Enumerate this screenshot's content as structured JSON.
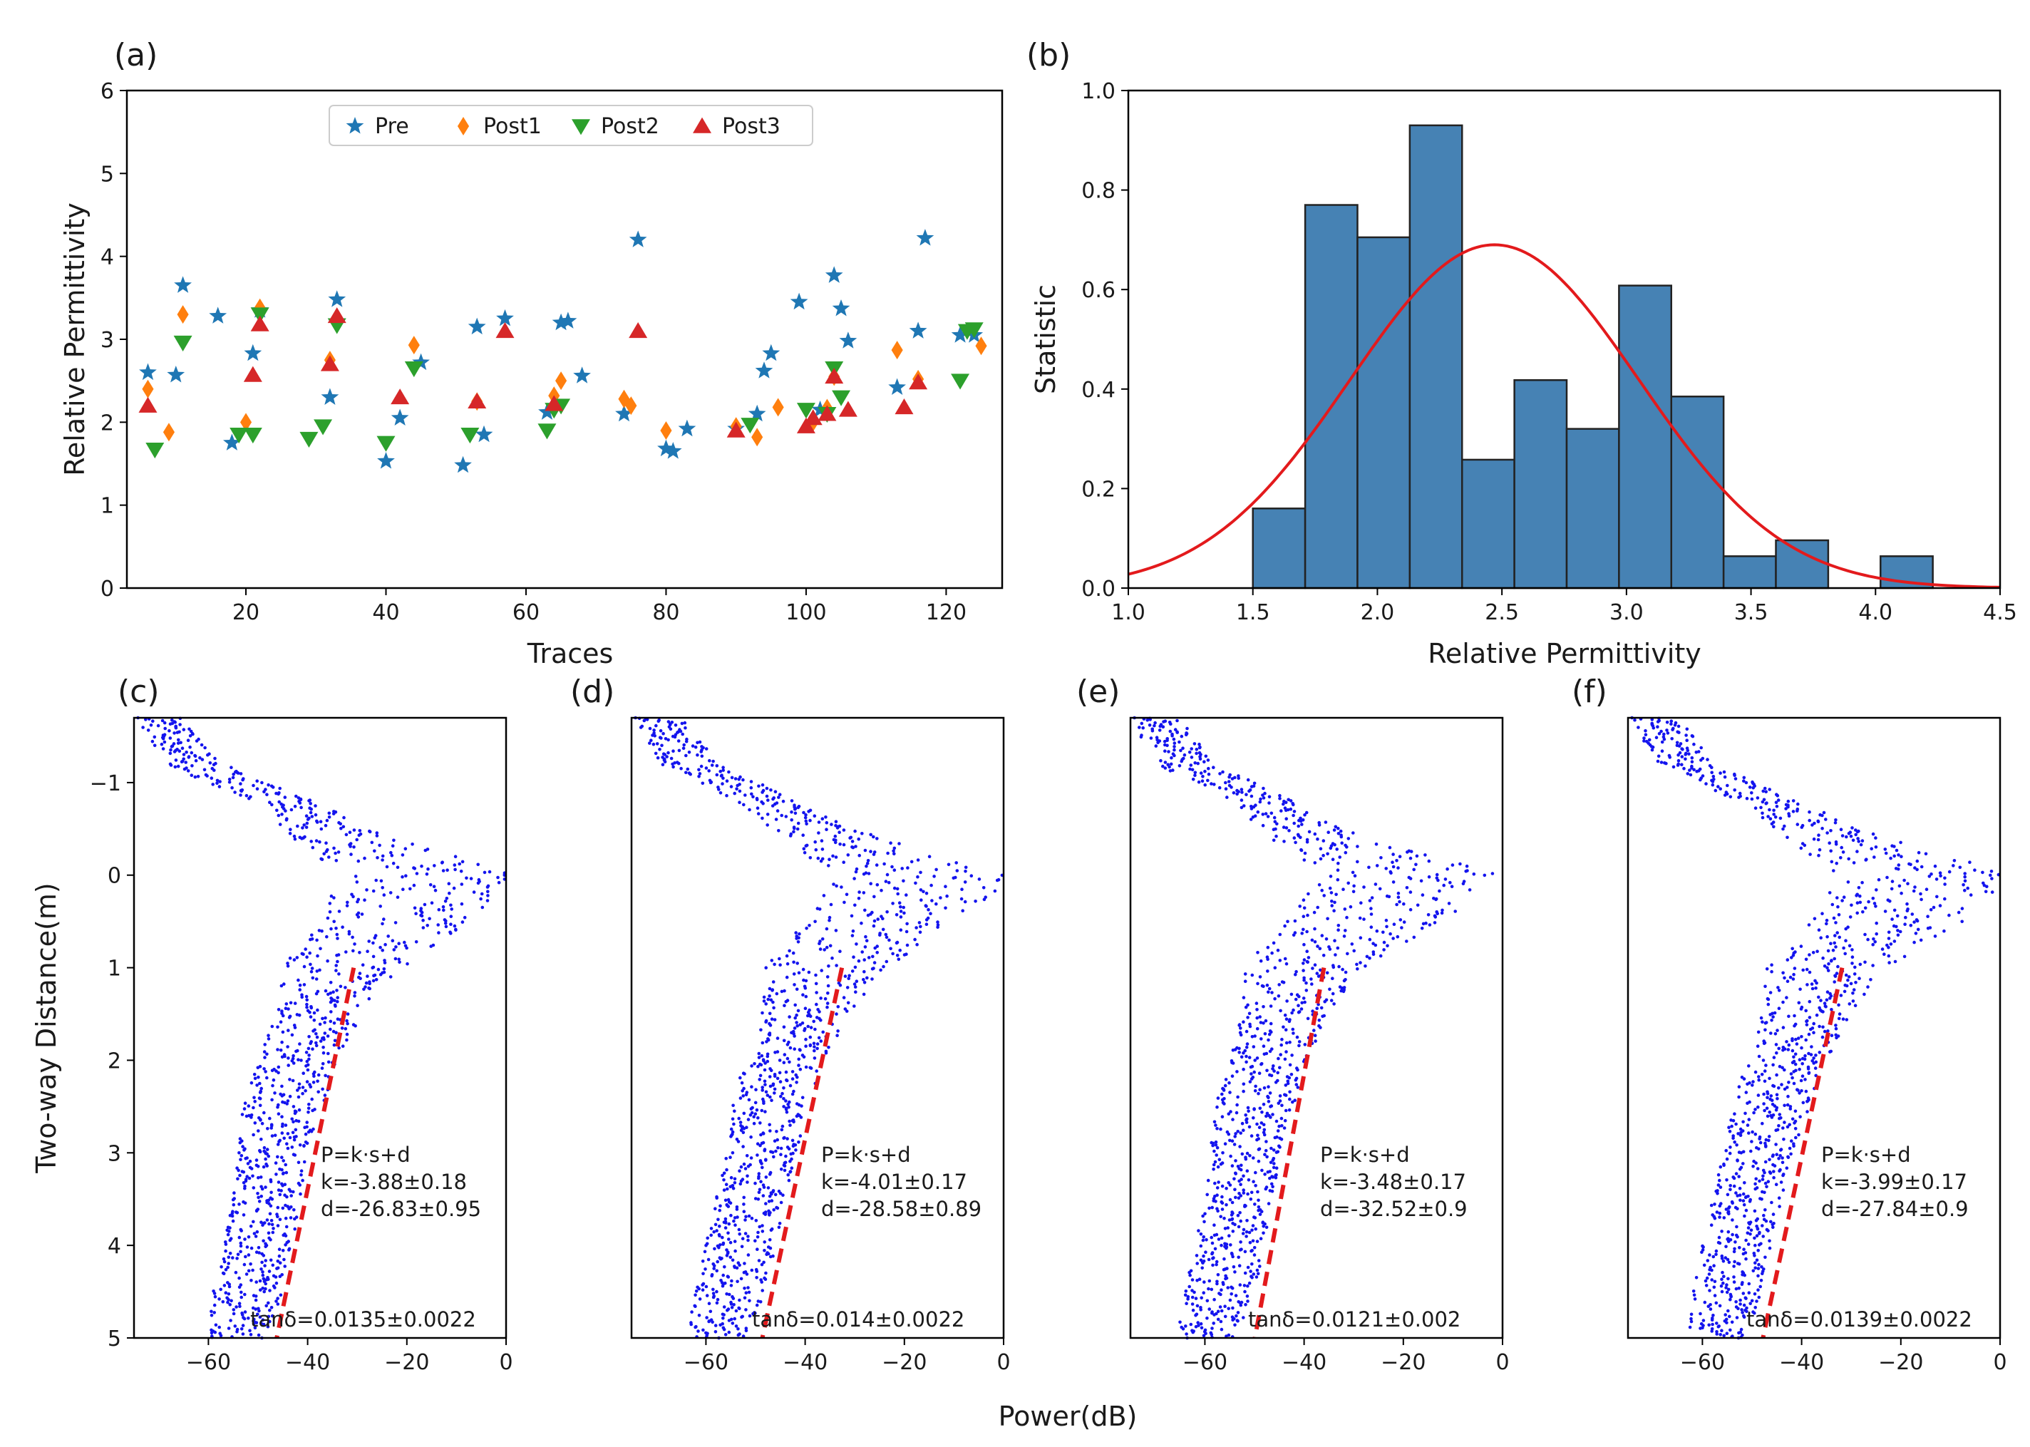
{
  "figure": {
    "shared_xlabel": "Power(dB)"
  },
  "chart_data": [
    {
      "id": "a",
      "type": "scatter",
      "panel_label": "(a)",
      "xlabel": "Traces",
      "ylabel": "Relative Permittivity",
      "xlim": [
        3,
        128
      ],
      "ylim": [
        0,
        6
      ],
      "xticks": [
        20,
        40,
        60,
        80,
        100,
        120
      ],
      "yticks": [
        0,
        1,
        2,
        3,
        4,
        5,
        6
      ],
      "legend_position": "top-center",
      "series": [
        {
          "name": "Pre",
          "marker": "star",
          "color": "#1f77b4",
          "x": [
            6,
            10,
            11,
            16,
            18,
            21,
            22,
            32,
            33,
            40,
            42,
            45,
            51,
            53,
            54,
            57,
            63,
            65,
            66,
            68,
            74,
            76,
            80,
            81,
            83,
            90,
            93,
            94,
            95,
            99,
            102,
            104,
            105,
            106,
            113,
            116,
            117,
            122,
            124
          ],
          "y": [
            2.6,
            2.57,
            3.65,
            3.28,
            1.75,
            2.83,
            3.35,
            2.3,
            3.48,
            1.53,
            2.05,
            2.72,
            1.48,
            3.15,
            1.85,
            3.25,
            2.12,
            3.2,
            3.22,
            2.56,
            2.1,
            4.2,
            1.68,
            1.65,
            1.92,
            1.92,
            2.1,
            2.62,
            2.83,
            3.45,
            2.15,
            3.77,
            3.37,
            2.98,
            2.42,
            3.1,
            4.22,
            3.05,
            3.05
          ]
        },
        {
          "name": "Post1",
          "marker": "diamond",
          "color": "#ff7f0e",
          "x": [
            6,
            9,
            11,
            20,
            22,
            32,
            44,
            53,
            64,
            65,
            74,
            75,
            80,
            90,
            93,
            96,
            101,
            103,
            104,
            113,
            116,
            125
          ],
          "y": [
            2.4,
            1.88,
            3.3,
            2.0,
            3.38,
            2.75,
            2.93,
            2.25,
            2.32,
            2.5,
            2.28,
            2.2,
            1.9,
            1.95,
            1.82,
            2.18,
            2.0,
            2.17,
            2.55,
            2.87,
            2.52,
            2.92
          ]
        },
        {
          "name": "Post2",
          "marker": "triangle-down",
          "color": "#2ca02c",
          "x": [
            7,
            11,
            19,
            21,
            22,
            29,
            31,
            33,
            40,
            44,
            52,
            63,
            64,
            65,
            92,
            100,
            103,
            104,
            105,
            122,
            123,
            124
          ],
          "y": [
            1.67,
            2.96,
            1.85,
            1.85,
            3.3,
            1.8,
            1.95,
            3.17,
            1.75,
            2.65,
            1.85,
            1.9,
            2.15,
            2.2,
            1.97,
            2.15,
            2.1,
            2.65,
            2.3,
            2.5,
            3.1,
            3.12
          ]
        },
        {
          "name": "Post3",
          "marker": "triangle-up",
          "color": "#d62728",
          "x": [
            6,
            21,
            22,
            32,
            33,
            42,
            53,
            57,
            64,
            76,
            90,
            100,
            101,
            103,
            104,
            106,
            114,
            116
          ],
          "y": [
            2.2,
            2.57,
            3.18,
            2.7,
            3.28,
            2.3,
            2.25,
            3.1,
            2.22,
            3.1,
            1.9,
            1.95,
            2.05,
            2.1,
            2.55,
            2.15,
            2.18,
            2.48
          ]
        }
      ]
    },
    {
      "id": "b",
      "type": "bar",
      "panel_label": "(b)",
      "xlabel": "Relative Permittivity",
      "ylabel": "Statistic",
      "xlim": [
        1.0,
        4.5
      ],
      "ylim": [
        0.0,
        1.0
      ],
      "xticks": [
        "1.0",
        "1.5",
        "2.0",
        "2.5",
        "3.0",
        "3.5",
        "4.0",
        "4.5"
      ],
      "yticks": [
        "0.0",
        "0.2",
        "0.4",
        "0.6",
        "0.8",
        "1.0"
      ],
      "bar_color": "#4682b4",
      "bins": [
        {
          "left": 1.5,
          "right": 1.71,
          "value": 0.16
        },
        {
          "left": 1.71,
          "right": 1.92,
          "value": 0.77
        },
        {
          "left": 1.92,
          "right": 2.13,
          "value": 0.705
        },
        {
          "left": 2.13,
          "right": 2.34,
          "value": 0.93
        },
        {
          "left": 2.34,
          "right": 2.55,
          "value": 0.258
        },
        {
          "left": 2.55,
          "right": 2.76,
          "value": 0.418
        },
        {
          "left": 2.76,
          "right": 2.97,
          "value": 0.32
        },
        {
          "left": 2.97,
          "right": 3.18,
          "value": 0.608
        },
        {
          "left": 3.18,
          "right": 3.39,
          "value": 0.385
        },
        {
          "left": 3.39,
          "right": 3.6,
          "value": 0.064
        },
        {
          "left": 3.6,
          "right": 3.81,
          "value": 0.096
        },
        {
          "left": 3.81,
          "right": 4.02,
          "value": 0.0
        },
        {
          "left": 4.02,
          "right": 4.23,
          "value": 0.064
        }
      ],
      "fit_curve": {
        "type": "normal",
        "mean": 2.47,
        "std": 0.58,
        "peak": 0.69,
        "color": "#e31a1c"
      }
    },
    {
      "id": "c",
      "type": "scatter",
      "panel_label": "(c)",
      "ylabel": "Two-way Distance(m)",
      "xlim": [
        -75,
        0
      ],
      "ylim": [
        -1.7,
        5
      ],
      "xticks": [
        -60,
        -40,
        -20,
        0
      ],
      "yticks": [
        -1,
        0,
        1,
        2,
        3,
        4,
        5
      ],
      "annotation_lines": [
        "P=k·s+d",
        "k=-3.88±0.18",
        "d=-26.83±0.95"
      ],
      "tan_label": "tanδ=0.0135±0.0022",
      "fit": {
        "k": -3.88,
        "d": -26.83,
        "y_range": [
          1,
          5
        ]
      },
      "profile": {
        "depths": [
          -1.7,
          -1.2,
          -0.8,
          -0.4,
          0,
          0.5,
          1,
          1.5,
          2,
          2.5,
          3,
          3.5,
          4,
          4.5,
          5
        ],
        "power": [
          -70,
          -63,
          -45,
          -33,
          -15,
          -22,
          -33,
          -38,
          -42,
          -45,
          -47,
          -48,
          -50,
          -52,
          -54
        ],
        "spread": [
          5,
          6,
          6,
          10,
          18,
          16,
          12,
          9,
          8,
          8,
          7,
          7,
          7,
          7,
          6
        ]
      }
    },
    {
      "id": "d",
      "type": "scatter",
      "panel_label": "(d)",
      "xlim": [
        -75,
        0
      ],
      "ylim": [
        -1.7,
        5
      ],
      "xticks": [
        -60,
        -40,
        -20,
        0
      ],
      "annotation_lines": [
        "P=k·s+d",
        "k=-4.01±0.17",
        "d=-28.58±0.89"
      ],
      "tan_label": "tanδ=0.014±0.0022",
      "fit": {
        "k": -4.01,
        "d": -28.58,
        "y_range": [
          1,
          5
        ]
      },
      "profile": {
        "depths": [
          -1.7,
          -1.2,
          -0.8,
          -0.4,
          0,
          0.5,
          1,
          1.5,
          2,
          2.5,
          3,
          3.5,
          4,
          4.5,
          5
        ],
        "power": [
          -70,
          -63,
          -48,
          -35,
          -16,
          -24,
          -36,
          -40,
          -44,
          -47,
          -49,
          -51,
          -53,
          -55,
          -58
        ],
        "spread": [
          5,
          6,
          6,
          10,
          18,
          16,
          12,
          9,
          8,
          8,
          7,
          7,
          7,
          7,
          6
        ]
      }
    },
    {
      "id": "e",
      "type": "scatter",
      "panel_label": "(e)",
      "xlim": [
        -75,
        0
      ],
      "ylim": [
        -1.7,
        5
      ],
      "xticks": [
        -60,
        -40,
        -20,
        0
      ],
      "annotation_lines": [
        "P=k·s+d",
        "k=-3.48±0.17",
        "d=-32.52±0.9"
      ],
      "tan_label": "tanδ=0.0121±0.002",
      "fit": {
        "k": -3.48,
        "d": -32.52,
        "y_range": [
          1,
          5
        ]
      },
      "profile": {
        "depths": [
          -1.7,
          -1.2,
          -0.8,
          -0.4,
          0,
          0.5,
          1,
          1.5,
          2,
          2.5,
          3,
          3.5,
          4,
          4.5,
          5
        ],
        "power": [
          -70,
          -64,
          -48,
          -38,
          -18,
          -28,
          -40,
          -44,
          -47,
          -50,
          -52,
          -53,
          -55,
          -57,
          -60
        ],
        "spread": [
          5,
          6,
          6,
          10,
          18,
          16,
          12,
          9,
          8,
          8,
          7,
          7,
          7,
          7,
          6
        ]
      }
    },
    {
      "id": "f",
      "type": "scatter",
      "panel_label": "(f)",
      "xlim": [
        -75,
        0
      ],
      "ylim": [
        -1.7,
        5
      ],
      "xticks": [
        -60,
        -40,
        -20,
        0
      ],
      "annotation_lines": [
        "P=k·s+d",
        "k=-3.99±0.17",
        "d=-27.84±0.9"
      ],
      "tan_label": "tanδ=0.0139±0.0022",
      "fit": {
        "k": -3.99,
        "d": -27.84,
        "y_range": [
          1,
          5
        ]
      },
      "profile": {
        "depths": [
          -1.7,
          -1.2,
          -0.8,
          -0.4,
          0,
          0.5,
          1,
          1.5,
          2,
          2.5,
          3,
          3.5,
          4,
          4.5,
          5
        ],
        "power": [
          -70,
          -63,
          -47,
          -33,
          -15,
          -23,
          -35,
          -39,
          -43,
          -46,
          -49,
          -51,
          -53,
          -55,
          -57
        ],
        "spread": [
          5,
          6,
          6,
          10,
          18,
          16,
          12,
          9,
          8,
          8,
          7,
          7,
          7,
          7,
          6
        ]
      }
    }
  ]
}
